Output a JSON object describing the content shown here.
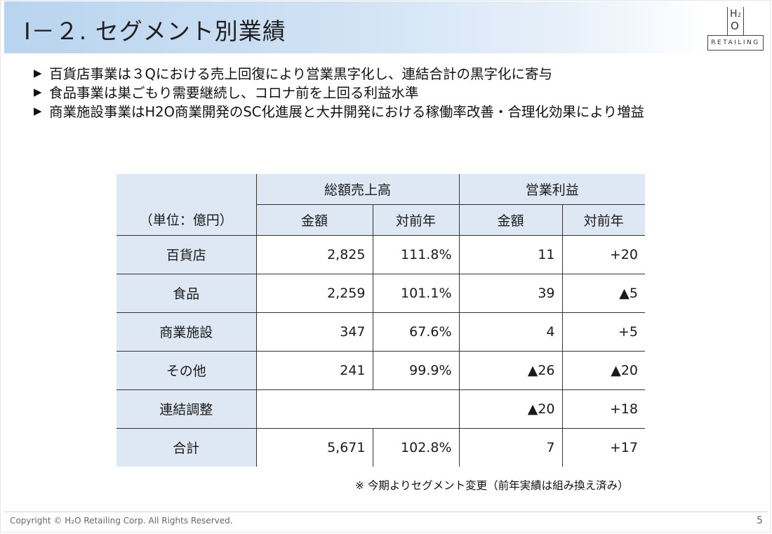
{
  "slide": {
    "title": "Ⅰ－２. セグメント別業績",
    "logo": {
      "h": "H",
      "two": "2",
      "o": "O",
      "text": "RETAILING"
    },
    "bullets": [
      {
        "mark": "▶",
        "text": "百貨店事業は３Qにおける売上回復により営業黒字化し、連結合計の黒字化に寄与"
      },
      {
        "mark": "▶",
        "text": "食品事業は巣ごもり需要継続し、コロナ前を上回る利益水準"
      },
      {
        "mark": "▶",
        "text": "商業施設事業はH2O商業開発のSC化進展と大井開発における稼働率改善・合理化効果により増益"
      }
    ],
    "table": {
      "unit_label": "（単位：億円）",
      "group_sales": "総額売上高",
      "group_profit": "営業利益",
      "col_amount": "金額",
      "col_yoy": "対前年",
      "col_amount2": "金額",
      "col_yoy2": "対前年",
      "rows": [
        {
          "label": "百貨店",
          "sales": "2,825",
          "sales_yoy": "111.8%",
          "profit": "11",
          "profit_yoy": "+20"
        },
        {
          "label": "食品",
          "sales": "2,259",
          "sales_yoy": "101.1%",
          "profit": "39",
          "profit_yoy": "▲5"
        },
        {
          "label": "商業施設",
          "sales": "347",
          "sales_yoy": "67.6%",
          "profit": "4",
          "profit_yoy": "+5"
        },
        {
          "label": "その他",
          "sales": "241",
          "sales_yoy": "99.9%",
          "profit": "▲26",
          "profit_yoy": "▲20"
        },
        {
          "label": "連結調整",
          "sales": "",
          "sales_yoy": "",
          "profit": "▲20",
          "profit_yoy": "+18"
        },
        {
          "label": "合計",
          "sales": "5,671",
          "sales_yoy": "102.8%",
          "profit": "7",
          "profit_yoy": "+17"
        }
      ]
    },
    "note": "※ 今期よりセグメント変更（前年実績は組み換え済み）",
    "footer": "Copyright © H₂O Retailing Corp. All Rights Reserved.",
    "page_number": "5"
  }
}
